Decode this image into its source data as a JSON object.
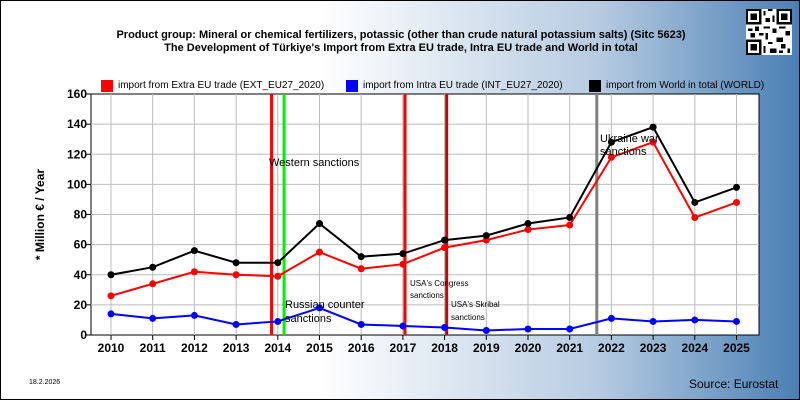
{
  "title_line1": "Product group: Mineral or chemical fertilizers, potassic (other than crude natural potassium salts) (Sitc 5623)",
  "title_line2": "The Development of Türkiye's Import from Extra EU trade, Intra EU trade and World in total",
  "date": "18.2.2026",
  "source": "Source: Eurostat",
  "chart_data": {
    "type": "line",
    "ylabel": "* Million € / Year",
    "xlabel": "",
    "ylim": [
      0,
      160
    ],
    "yticks": [
      0,
      20,
      40,
      60,
      80,
      100,
      120,
      140,
      160
    ],
    "grid": true,
    "legend_position": "top",
    "categories": [
      "2010",
      "2011",
      "2012",
      "2013",
      "2014",
      "2015",
      "2016",
      "2017",
      "2018",
      "2019",
      "2020",
      "2021",
      "2022",
      "2023",
      "2024",
      "2025"
    ],
    "series": [
      {
        "name": "import from Extra EU trade (EXT_EU27_2020)",
        "color": "#ff0000",
        "values": [
          26,
          34,
          42,
          40,
          39,
          55,
          44,
          47,
          58,
          63,
          70,
          73,
          118,
          128,
          78,
          88
        ]
      },
      {
        "name": "import from Intra EU trade (INT_EU27_2020)",
        "color": "#0000ff",
        "values": [
          14,
          11,
          13,
          7,
          9,
          18,
          7,
          6,
          5,
          3,
          4,
          4,
          11,
          9,
          10,
          9
        ]
      },
      {
        "name": "import from World in total (WORLD)",
        "color": "#000000",
        "values": [
          40,
          45,
          56,
          48,
          48,
          74,
          52,
          54,
          63,
          66,
          74,
          78,
          128,
          138,
          88,
          98
        ]
      }
    ],
    "annotations": [
      {
        "text": "Western sanctions",
        "line_x": 2013.85,
        "line_color": "#ff0000"
      },
      {
        "text": "",
        "line_x": 2014.15,
        "line_color": "#00ee00"
      },
      {
        "text": "Russian counter sanctions",
        "line_x": null
      },
      {
        "text": "USA's Congress sanctions",
        "line_x": 2017.05,
        "line_color": "#ff0000"
      },
      {
        "text": "USA's Skribal sanctions",
        "line_x": 2018.05,
        "line_color": "#cc0000"
      },
      {
        "text": "Ukraine war sanctions",
        "line_x": 2021.65,
        "line_color": "#808080"
      }
    ]
  }
}
